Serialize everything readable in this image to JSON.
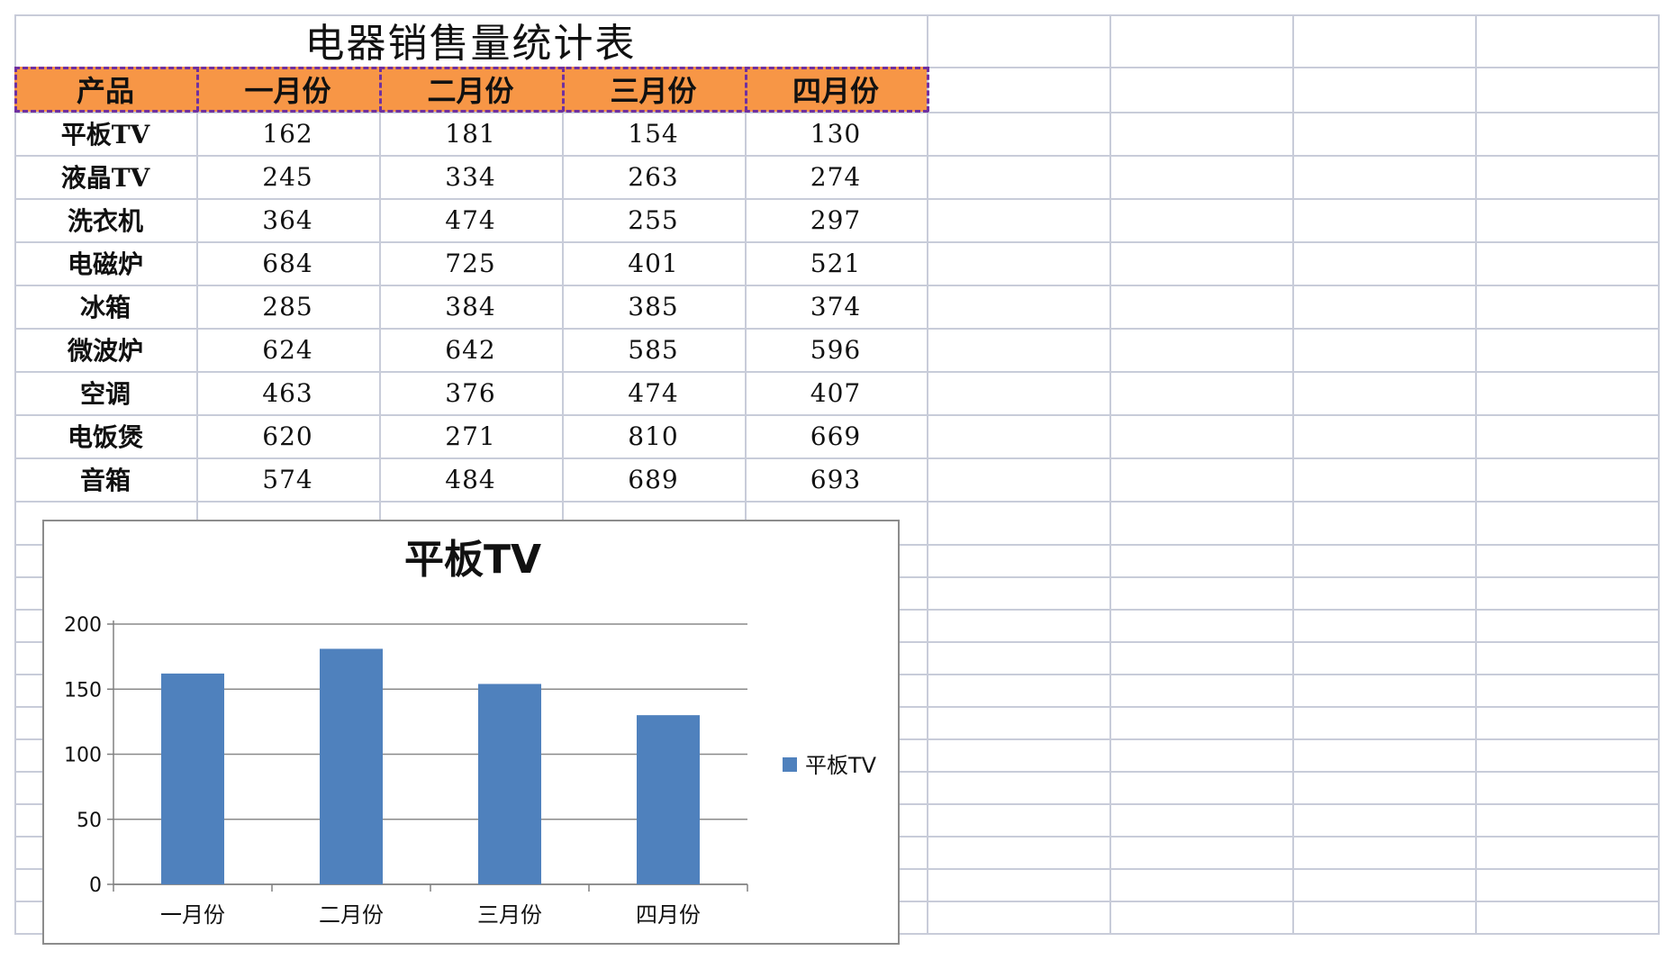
{
  "sheet": {
    "title": "电器销售量统计表",
    "headers": [
      "产品",
      "一月份",
      "二月份",
      "三月份",
      "四月份"
    ],
    "rows": [
      {
        "product": "平板TV",
        "values": [
          "162",
          "181",
          "154",
          "130"
        ]
      },
      {
        "product": "液晶TV",
        "values": [
          "245",
          "334",
          "263",
          "274"
        ]
      },
      {
        "product": "洗衣机",
        "values": [
          "364",
          "474",
          "255",
          "297"
        ]
      },
      {
        "product": "电磁炉",
        "values": [
          "684",
          "725",
          "401",
          "521"
        ]
      },
      {
        "product": "冰箱",
        "values": [
          "285",
          "384",
          "385",
          "374"
        ]
      },
      {
        "product": "微波炉",
        "values": [
          "624",
          "642",
          "585",
          "596"
        ]
      },
      {
        "product": "空调",
        "values": [
          "463",
          "376",
          "474",
          "407"
        ]
      },
      {
        "product": "电饭煲",
        "values": [
          "620",
          "271",
          "810",
          "669"
        ]
      },
      {
        "product": "音箱",
        "values": [
          "574",
          "484",
          "689",
          "693"
        ]
      }
    ],
    "colors": {
      "header_fill": "#f79646",
      "header_border": "#7030a0",
      "grid": "#c8ccd9"
    }
  },
  "chart_data": {
    "type": "bar",
    "title": "平板TV",
    "categories": [
      "一月份",
      "二月份",
      "三月份",
      "四月份"
    ],
    "series": [
      {
        "name": "平板TV",
        "values": [
          162,
          181,
          154,
          130
        ],
        "color": "#4f81bd"
      }
    ],
    "ylim": [
      0,
      200
    ],
    "yticks": [
      "0",
      "50",
      "100",
      "150",
      "200"
    ],
    "grid": true,
    "legend_position": "right"
  }
}
